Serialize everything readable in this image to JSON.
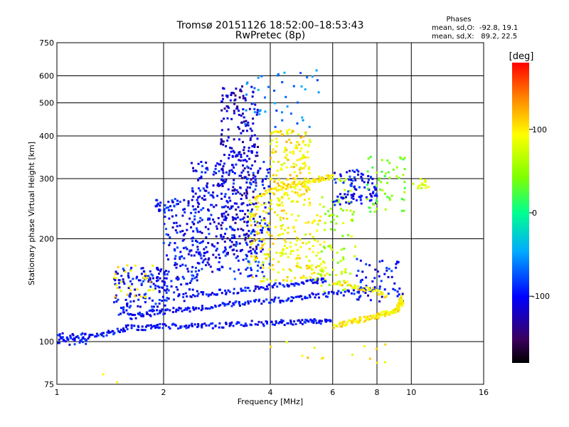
{
  "chart_data": {
    "type": "scatter",
    "title": "Tromsø 20151126 18:52:00–18:53:43",
    "subtitle": "RwPretec (8p)",
    "xlabel": "Frequency [MHz]",
    "ylabel": "Stationary phase Virtual Height [km]",
    "x_scale": "log",
    "y_scale": "log",
    "xlim": [
      1,
      16
    ],
    "ylim": [
      75,
      750
    ],
    "x_ticks": [
      1,
      2,
      4,
      6,
      8,
      10,
      16
    ],
    "x_tick_labels": [
      "1",
      "2",
      "4",
      "6",
      "8",
      "10",
      "16"
    ],
    "x_grid": [
      2,
      4,
      6,
      8,
      10
    ],
    "y_ticks": [
      75,
      100,
      200,
      300,
      400,
      500,
      600,
      750
    ],
    "y_tick_labels": [
      "75",
      "100",
      "200",
      "300",
      "400",
      "500",
      "600",
      "750"
    ],
    "y_grid": [
      100,
      200,
      300,
      400,
      500,
      600
    ],
    "grid": true,
    "phase_stats": {
      "title": "Phases",
      "line_o": "mean, sd,O:  -92.8, 19.1",
      "line_x": "mean, sd,X:   89.2, 22.5"
    },
    "colorbar": {
      "label": "[deg]",
      "range": [
        -180,
        180
      ],
      "ticks": [
        100,
        0,
        -100
      ],
      "tick_labels": [
        "100",
        "0",
        "-100"
      ],
      "colormap": "rainbow"
    },
    "traces": [
      {
        "x": [
          1.0,
          1.15,
          1.3,
          1.45,
          1.6,
          1.8,
          2.0,
          2.3,
          2.6,
          3.0,
          3.4,
          4.0,
          4.5,
          5.0,
          5.5,
          6.0
        ],
        "y": [
          100,
          103,
          104,
          107,
          110,
          110,
          111,
          111,
          111,
          112,
          113,
          113,
          114,
          114,
          115,
          114
        ],
        "phase": -100
      },
      {
        "x": [
          1.6,
          1.8,
          2.0,
          2.3,
          2.6,
          3.0,
          3.4,
          4.0,
          4.6,
          5.2,
          6.0,
          7.0,
          8.0
        ],
        "y": [
          118,
          121,
          123,
          124,
          126,
          128,
          130,
          132,
          133,
          136,
          138,
          140,
          142
        ],
        "phase": -100
      },
      {
        "x": [
          2.2,
          2.6,
          3.0,
          3.5,
          4.0,
          4.6,
          5.2,
          5.8
        ],
        "y": [
          136,
          138,
          140,
          142,
          145,
          148,
          150,
          152
        ],
        "phase": -100
      },
      {
        "x": [
          6.0,
          6.5,
          7.0,
          7.5,
          8.0,
          8.5,
          9.0,
          9.2,
          9.4,
          9.3
        ],
        "y": [
          111,
          113,
          115,
          117,
          119,
          121,
          123,
          126,
          130,
          134
        ],
        "phase": 100
      },
      {
        "x": [
          6.0,
          7.0,
          8.0,
          8.5
        ],
        "y": [
          150,
          145,
          140,
          135
        ],
        "phase": 100
      },
      {
        "x": [
          3.6,
          4.0,
          4.4,
          4.8,
          5.2,
          5.6,
          6.0
        ],
        "y": [
          260,
          275,
          285,
          290,
          295,
          300,
          305
        ],
        "phase": 100
      }
    ],
    "clusters": [
      {
        "xr": [
          0.98,
          1.22
        ],
        "yr": [
          97,
          107
        ],
        "n": 35,
        "phase": -100
      },
      {
        "xr": [
          1.45,
          2.05
        ],
        "yr": [
          118,
          165
        ],
        "n": 150,
        "phase": -100
      },
      {
        "xr": [
          1.45,
          1.9
        ],
        "yr": [
          135,
          168
        ],
        "n": 30,
        "phase": 100
      },
      {
        "xr": [
          1.9,
          2.2
        ],
        "yr": [
          240,
          262
        ],
        "n": 25,
        "phase": -100
      },
      {
        "xr": [
          2.0,
          2.5
        ],
        "yr": [
          130,
          260
        ],
        "n": 130,
        "phase": -100
      },
      {
        "xr": [
          2.4,
          3.0
        ],
        "yr": [
          160,
          340
        ],
        "n": 180,
        "phase": -100
      },
      {
        "xr": [
          2.9,
          3.7
        ],
        "yr": [
          180,
          560
        ],
        "n": 260,
        "phase": -120
      },
      {
        "xr": [
          3.0,
          4.0
        ],
        "yr": [
          150,
          360
        ],
        "n": 160,
        "phase": -90
      },
      {
        "xr": [
          3.5,
          4.4
        ],
        "yr": [
          150,
          260
        ],
        "n": 110,
        "phase": 95
      },
      {
        "xr": [
          4.0,
          5.2
        ],
        "yr": [
          250,
          420
        ],
        "n": 170,
        "phase": 100
      },
      {
        "xr": [
          4.3,
          5.8
        ],
        "yr": [
          150,
          240
        ],
        "n": 110,
        "phase": 90
      },
      {
        "xr": [
          3.4,
          5.6
        ],
        "yr": [
          420,
          640
        ],
        "n": 45,
        "phase": -60
      },
      {
        "xr": [
          5.5,
          7.0
        ],
        "yr": [
          140,
          300
        ],
        "n": 90,
        "phase": 60
      },
      {
        "xr": [
          6.0,
          8.0
        ],
        "yr": [
          250,
          320
        ],
        "n": 90,
        "phase": -100
      },
      {
        "xr": [
          7.0,
          9.5
        ],
        "yr": [
          130,
          175
        ],
        "n": 60,
        "phase": -100
      },
      {
        "xr": [
          7.4,
          9.6
        ],
        "yr": [
          240,
          350
        ],
        "n": 55,
        "phase": 40
      },
      {
        "xr": [
          10.0,
          11.2
        ],
        "yr": [
          280,
          300
        ],
        "n": 15,
        "phase": 80
      },
      {
        "xr": [
          4.0,
          8.5
        ],
        "yr": [
          86,
          100
        ],
        "n": 14,
        "phase": 100
      },
      {
        "xr": [
          1.3,
          1.5
        ],
        "yr": [
          72,
          85
        ],
        "n": 3,
        "phase": 100
      }
    ]
  }
}
